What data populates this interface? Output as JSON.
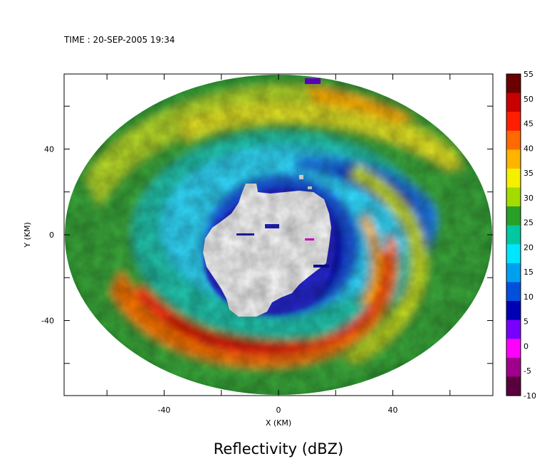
{
  "chart_data": {
    "type": "heatmap",
    "time_label": "TIME : 20-SEP-2005 19:34",
    "title": "Reflectivity (dBZ)",
    "xlabel": "X (KM)",
    "ylabel": "Y (KM)",
    "xlim": [
      -75,
      75
    ],
    "ylim": [
      -75,
      75
    ],
    "x_ticks": [
      -40,
      0,
      40
    ],
    "y_ticks": [
      40,
      0,
      -40
    ],
    "grid": false,
    "colorbar": {
      "min": -10,
      "max": 55,
      "ticks": [
        "55",
        "50",
        "45",
        "40",
        "35",
        "30",
        "25",
        "20",
        "15",
        "10",
        "5",
        "0",
        "-5",
        "-10"
      ],
      "colors": [
        "#6a0000",
        "#c80000",
        "#ff1e00",
        "#ff6a00",
        "#ffb400",
        "#f5f000",
        "#a5dc00",
        "#28a028",
        "#00c8a0",
        "#00e6ff",
        "#00a0f0",
        "#0050dc",
        "#0000b4",
        "#7800ff",
        "#ff00ff",
        "#a0008c",
        "#5a003c"
      ]
    }
  }
}
